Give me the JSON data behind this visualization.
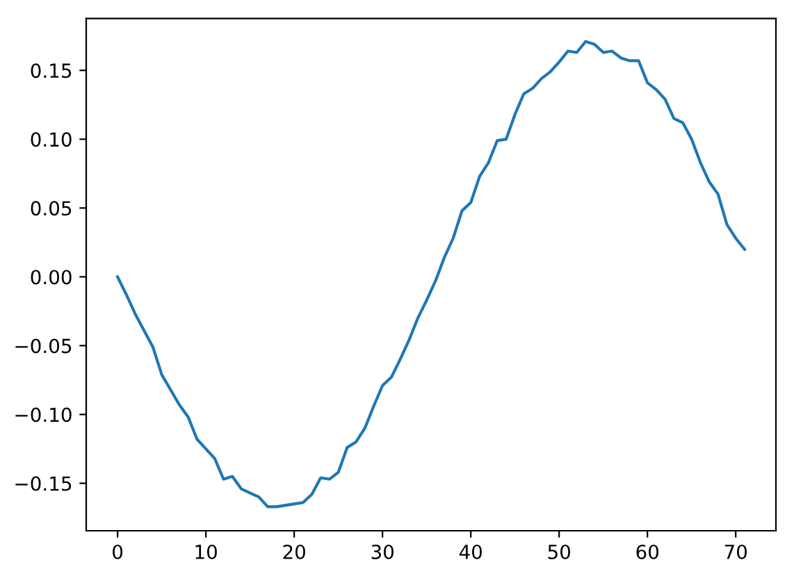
{
  "chart_data": {
    "type": "line",
    "x": [
      0,
      1,
      2,
      3,
      4,
      5,
      6,
      7,
      8,
      9,
      10,
      11,
      12,
      13,
      14,
      15,
      16,
      17,
      18,
      19,
      20,
      21,
      22,
      23,
      24,
      25,
      26,
      27,
      28,
      29,
      30,
      31,
      32,
      33,
      34,
      35,
      36,
      37,
      38,
      39,
      40,
      41,
      42,
      43,
      44,
      45,
      46,
      47,
      48,
      49,
      50,
      51,
      52,
      53,
      54,
      55,
      56,
      57,
      58,
      59,
      60,
      61,
      62,
      63,
      64,
      65,
      66,
      67,
      68,
      69,
      70,
      71
    ],
    "values": [
      0.0,
      -0.013,
      -0.027,
      -0.039,
      -0.051,
      -0.071,
      -0.082,
      -0.093,
      -0.102,
      -0.118,
      -0.125,
      -0.132,
      -0.147,
      -0.145,
      -0.154,
      -0.157,
      -0.16,
      -0.167,
      -0.167,
      -0.166,
      -0.165,
      -0.164,
      -0.158,
      -0.146,
      -0.147,
      -0.142,
      -0.124,
      -0.12,
      -0.11,
      -0.094,
      -0.079,
      -0.073,
      -0.06,
      -0.046,
      -0.03,
      -0.017,
      -0.003,
      0.014,
      0.028,
      0.048,
      0.054,
      0.073,
      0.083,
      0.099,
      0.1,
      0.118,
      0.133,
      0.137,
      0.144,
      0.149,
      0.156,
      0.164,
      0.163,
      0.171,
      0.169,
      0.163,
      0.164,
      0.159,
      0.157,
      0.157,
      0.141,
      0.136,
      0.129,
      0.115,
      0.112,
      0.1,
      0.083,
      0.069,
      0.06,
      0.038,
      0.028,
      0.02
    ],
    "color": "#1f77b4",
    "xlim": [
      -3.55,
      74.55
    ],
    "xticks": [
      0,
      10,
      20,
      30,
      40,
      50,
      60,
      70
    ],
    "ylim": [
      -0.1845,
      0.1877
    ],
    "yticks": [
      {
        "value": -0.15,
        "label": "−0.15"
      },
      {
        "value": -0.1,
        "label": "−0.10"
      },
      {
        "value": -0.05,
        "label": "−0.05"
      },
      {
        "value": 0.0,
        "label": "0.00"
      },
      0.05,
      {
        "value": 0.1,
        "label": "0.10"
      },
      0.15
    ]
  }
}
